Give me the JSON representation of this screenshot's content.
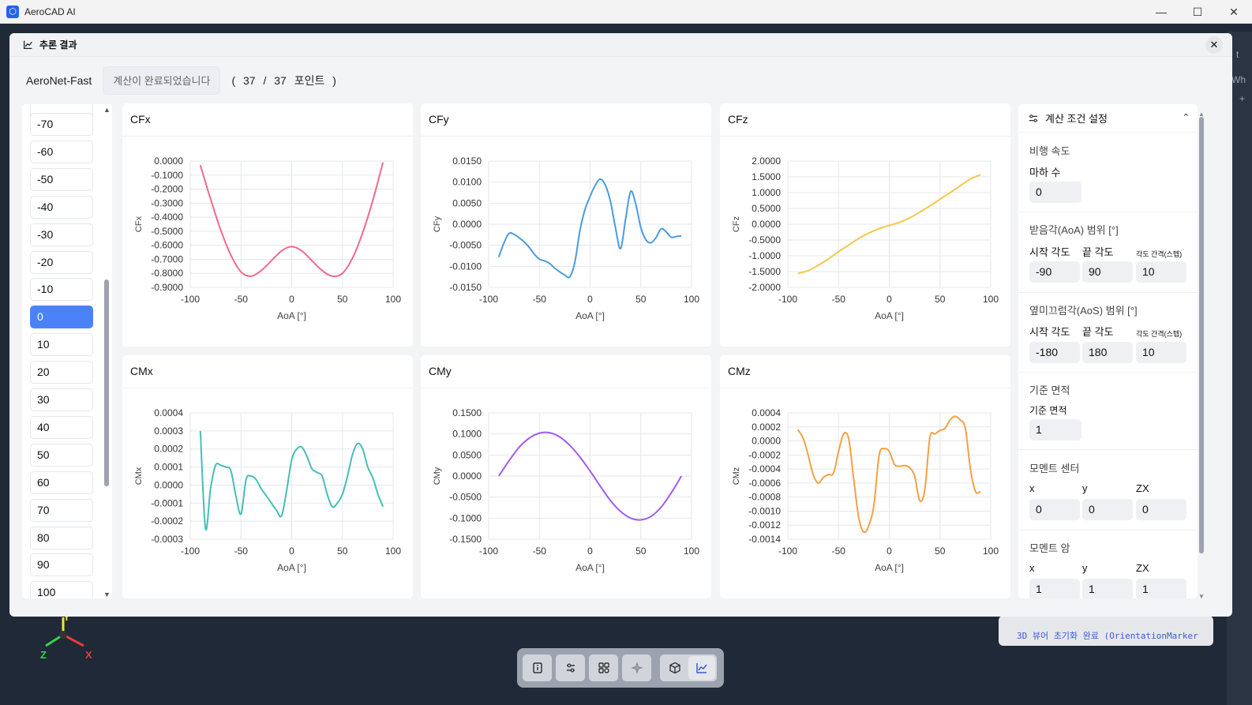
{
  "window": {
    "title": "AeroCAD AI",
    "minimize": "—",
    "maximize": "☐",
    "close": "✕"
  },
  "background": {
    "log_text": "3D 뷰어 초기화 완료 (OrientationMarker",
    "edge_chars": [
      "t",
      "Wh",
      "+"
    ],
    "axes": {
      "x": "X",
      "y": "Y",
      "z": "Z"
    }
  },
  "toolbar": {
    "buttons": [
      "info-icon",
      "sliders-icon",
      "grid-icon",
      "sparkle-icon",
      "cube-icon",
      "chart-icon"
    ],
    "active": "chart-icon"
  },
  "modal": {
    "title": "추론 결과",
    "close": "✕",
    "model": "AeroNet-Fast",
    "status": "계산이 완료되었습니다",
    "count_text": "( 37 / 37 포인트 )"
  },
  "angle_list": {
    "items": [
      "-70",
      "-60",
      "-50",
      "-40",
      "-30",
      "-20",
      "-10",
      "0",
      "10",
      "20",
      "30",
      "40",
      "50",
      "60",
      "70",
      "80",
      "90",
      "100"
    ],
    "selected": "0"
  },
  "chart_data": [
    {
      "type": "line",
      "title": "CFx",
      "xlabel": "AoA [°]",
      "ylabel": "CFx",
      "color": "#f06a8a",
      "xlim": [
        -100,
        100
      ],
      "ylim": [
        -0.9,
        0.0
      ],
      "xticks": [
        "-100",
        "-50",
        "0",
        "50",
        "100"
      ],
      "yticks": [
        "0.0000",
        "-0.1000",
        "-0.2000",
        "-0.3000",
        "-0.4000",
        "-0.5000",
        "-0.6000",
        "-0.7000",
        "-0.8000",
        "-0.9000"
      ],
      "ytick_values": [
        0,
        -0.1,
        -0.2,
        -0.3,
        -0.4,
        -0.5,
        -0.6,
        -0.7,
        -0.8,
        -0.9
      ],
      "x": [
        -90,
        -80,
        -70,
        -60,
        -50,
        -40,
        -30,
        -20,
        -10,
        0,
        10,
        20,
        30,
        40,
        50,
        60,
        70,
        80,
        90
      ],
      "y": [
        -0.03,
        -0.27,
        -0.49,
        -0.67,
        -0.79,
        -0.82,
        -0.78,
        -0.71,
        -0.64,
        -0.61,
        -0.64,
        -0.71,
        -0.78,
        -0.82,
        -0.8,
        -0.69,
        -0.51,
        -0.28,
        -0.01
      ]
    },
    {
      "type": "line",
      "title": "CFy",
      "xlabel": "AoA [°]",
      "ylabel": "CFy",
      "color": "#4a9be0",
      "xlim": [
        -100,
        100
      ],
      "ylim": [
        -0.015,
        0.015
      ],
      "xticks": [
        "-100",
        "-50",
        "0",
        "50",
        "100"
      ],
      "yticks": [
        "0.0150",
        "0.0100",
        "0.0050",
        "0.0000",
        "-0.0050",
        "-0.0100",
        "-0.0150"
      ],
      "ytick_values": [
        0.015,
        0.01,
        0.005,
        0,
        -0.005,
        -0.01,
        -0.015
      ],
      "x": [
        -90,
        -85,
        -80,
        -75,
        -70,
        -65,
        -60,
        -55,
        -50,
        -45,
        -40,
        -35,
        -30,
        -25,
        -20,
        -15,
        -10,
        -5,
        0,
        5,
        10,
        15,
        20,
        25,
        30,
        35,
        40,
        45,
        50,
        55,
        60,
        65,
        70,
        75,
        80,
        85,
        90
      ],
      "y": [
        -0.0078,
        -0.0045,
        -0.0022,
        -0.0024,
        -0.0032,
        -0.0042,
        -0.0055,
        -0.0071,
        -0.0083,
        -0.0087,
        -0.0093,
        -0.0104,
        -0.0113,
        -0.0121,
        -0.0125,
        -0.009,
        -0.0015,
        0.0035,
        0.0066,
        0.0092,
        0.0107,
        0.0093,
        0.0055,
        -0.0008,
        -0.0058,
        0.0012,
        0.0078,
        0.0048,
        -0.0008,
        -0.0037,
        -0.0044,
        -0.0032,
        -0.0011,
        -0.0018,
        -0.0031,
        -0.0029,
        -0.0028
      ]
    },
    {
      "type": "line",
      "title": "CFz",
      "xlabel": "AoA [°]",
      "ylabel": "CFz",
      "color": "#f5c84a",
      "xlim": [
        -100,
        100
      ],
      "ylim": [
        -2.0,
        2.0
      ],
      "xticks": [
        "-100",
        "-50",
        "0",
        "50",
        "100"
      ],
      "yticks": [
        "2.0000",
        "1.5000",
        "1.0000",
        "0.5000",
        "0.0000",
        "-0.5000",
        "-1.0000",
        "-1.5000",
        "-2.0000"
      ],
      "ytick_values": [
        2,
        1.5,
        1,
        0.5,
        0,
        -0.5,
        -1,
        -1.5,
        -2
      ],
      "x": [
        -90,
        -80,
        -70,
        -60,
        -50,
        -40,
        -30,
        -20,
        -10,
        0,
        10,
        20,
        30,
        40,
        50,
        60,
        70,
        80,
        90
      ],
      "y": [
        -1.56,
        -1.47,
        -1.3,
        -1.1,
        -0.87,
        -0.66,
        -0.45,
        -0.28,
        -0.14,
        -0.04,
        0.06,
        0.2,
        0.38,
        0.58,
        0.79,
        1.0,
        1.22,
        1.43,
        1.57
      ]
    },
    {
      "type": "line",
      "title": "CMx",
      "xlabel": "AoA [°]",
      "ylabel": "CMx",
      "color": "#45bfb5",
      "xlim": [
        -100,
        100
      ],
      "ylim": [
        -0.0003,
        0.0004
      ],
      "xticks": [
        "-100",
        "-50",
        "0",
        "50",
        "100"
      ],
      "yticks": [
        "0.0004",
        "0.0003",
        "0.0002",
        "0.0001",
        "0.0000",
        "-0.0001",
        "-0.0002",
        "-0.0003"
      ],
      "ytick_values": [
        0.0004,
        0.0003,
        0.0002,
        0.0001,
        0,
        -0.0001,
        -0.0002,
        -0.0003
      ],
      "x": [
        -90,
        -85,
        -80,
        -75,
        -70,
        -65,
        -60,
        -55,
        -50,
        -45,
        -40,
        -35,
        -30,
        -25,
        -20,
        -15,
        -10,
        -5,
        0,
        5,
        10,
        15,
        20,
        25,
        30,
        35,
        40,
        45,
        50,
        55,
        60,
        65,
        70,
        75,
        80,
        85,
        90
      ],
      "y": [
        0.0003,
        -0.00024,
        -2e-05,
        0.00011,
        0.00011,
        0.0001,
        8e-05,
        -6e-05,
        -0.00016,
        3e-05,
        5e-05,
        3e-05,
        -2e-05,
        -6e-05,
        -0.0001,
        -0.00014,
        -0.00017,
        -3e-05,
        0.00014,
        0.0002,
        0.00021,
        0.00016,
        9e-05,
        7e-05,
        5e-05,
        -5e-05,
        -0.00012,
        -0.0001,
        -5e-05,
        5e-05,
        0.00017,
        0.00023,
        0.0002,
        0.0001,
        4e-05,
        -5e-05,
        -0.00012
      ]
    },
    {
      "type": "line",
      "title": "CMy",
      "xlabel": "AoA [°]",
      "ylabel": "CMy",
      "color": "#a05cf0",
      "xlim": [
        -100,
        100
      ],
      "ylim": [
        -0.15,
        0.15
      ],
      "xticks": [
        "-100",
        "-50",
        "0",
        "50",
        "100"
      ],
      "yticks": [
        "0.1500",
        "0.1000",
        "0.0500",
        "0.0000",
        "-0.0500",
        "-0.1000",
        "-0.1500"
      ],
      "ytick_values": [
        0.15,
        0.1,
        0.05,
        0,
        -0.05,
        -0.1,
        -0.15
      ],
      "x": [
        -90,
        -80,
        -70,
        -60,
        -50,
        -40,
        -30,
        -20,
        -10,
        0,
        10,
        20,
        30,
        40,
        50,
        60,
        70,
        80,
        90
      ],
      "y": [
        0.0,
        0.036,
        0.068,
        0.09,
        0.102,
        0.103,
        0.093,
        0.073,
        0.045,
        0.012,
        -0.024,
        -0.058,
        -0.084,
        -0.1,
        -0.104,
        -0.096,
        -0.074,
        -0.04,
        0.0
      ]
    },
    {
      "type": "line",
      "title": "CMz",
      "xlabel": "AoA [°]",
      "ylabel": "CMz",
      "color": "#f5a040",
      "xlim": [
        -100,
        100
      ],
      "ylim": [
        -0.0014,
        0.0004
      ],
      "xticks": [
        "-100",
        "-50",
        "0",
        "50",
        "100"
      ],
      "yticks": [
        "0.0004",
        "0.0002",
        "0.0000",
        "-0.0002",
        "-0.0004",
        "-0.0006",
        "-0.0008",
        "-0.0010",
        "-0.0012",
        "-0.0014"
      ],
      "ytick_values": [
        0.0004,
        0.0002,
        0,
        -0.0002,
        -0.0004,
        -0.0006,
        -0.0008,
        -0.001,
        -0.0012,
        -0.0014
      ],
      "x": [
        -90,
        -85,
        -80,
        -75,
        -70,
        -65,
        -60,
        -55,
        -50,
        -45,
        -40,
        -35,
        -30,
        -25,
        -20,
        -15,
        -10,
        -5,
        0,
        5,
        10,
        15,
        20,
        25,
        30,
        35,
        40,
        45,
        50,
        55,
        60,
        65,
        70,
        75,
        80,
        85,
        90
      ],
      "y": [
        0.00016,
        4e-05,
        -0.0002,
        -0.00048,
        -0.0006,
        -0.00052,
        -0.00048,
        -0.00046,
        -0.00015,
        0.0001,
        3e-05,
        -0.00055,
        -0.0011,
        -0.0013,
        -0.0012,
        -0.0009,
        -0.0002,
        -0.00011,
        -0.00015,
        -0.00033,
        -0.00036,
        -0.00035,
        -0.00038,
        -0.0005,
        -0.00085,
        -0.0007,
        5e-05,
        0.0001,
        0.00015,
        0.00018,
        0.0003,
        0.00035,
        0.0003,
        0.00018,
        -0.0004,
        -0.00072,
        -0.00072
      ]
    }
  ],
  "settings": {
    "title": "계산 조건 설정",
    "collapse": "⌃",
    "flight_speed": {
      "title": "비행 속도",
      "mach_label": "마하 수",
      "mach_value": "0"
    },
    "aoa": {
      "title": "받음각(AoA) 범위 [°]",
      "start_label": "시작 각도",
      "end_label": "끝 각도",
      "step_label": "각도 간격(스텝)",
      "start": "-90",
      "end": "90",
      "step": "10"
    },
    "aos": {
      "title": "옆미끄럼각(AoS) 범위 [°]",
      "start_label": "시작 각도",
      "end_label": "끝 각도",
      "step_label": "각도 간격(스텝)",
      "start": "-180",
      "end": "180",
      "step": "10"
    },
    "ref_area": {
      "title": "기준 면적",
      "label": "기준 면적",
      "value": "1"
    },
    "moment_center": {
      "title": "모멘트 센터",
      "x_label": "x",
      "y_label": "y",
      "zx_label": "ZX",
      "x": "0",
      "y": "0",
      "zx": "0"
    },
    "moment_arm": {
      "title": "모멘트 암",
      "x_label": "x",
      "y_label": "y",
      "zx_label": "ZX",
      "x": "1",
      "y": "1",
      "zx": "1"
    }
  }
}
